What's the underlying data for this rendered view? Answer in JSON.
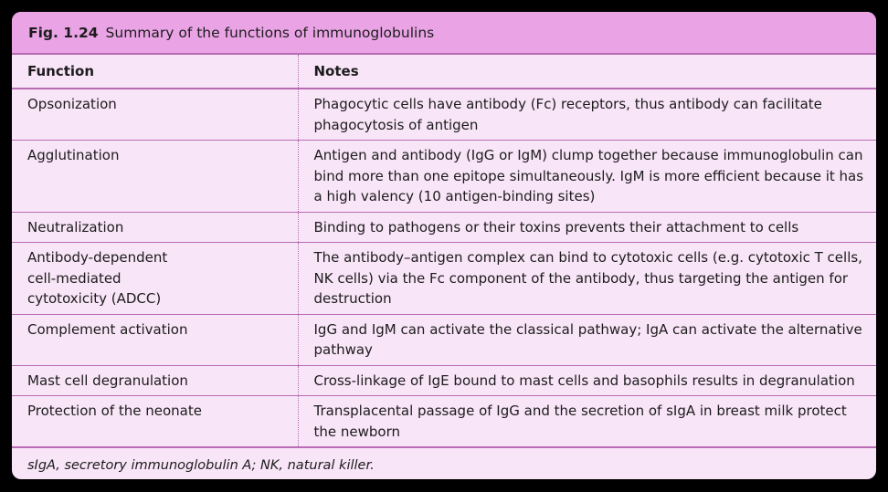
{
  "figure": {
    "label": "Fig. 1.24",
    "title": "Summary of the functions of immunoglobulins"
  },
  "table": {
    "headers": [
      "Function",
      "Notes"
    ],
    "rows": [
      {
        "function": [
          "Opsonization"
        ],
        "notes": "Phagocytic cells have antibody (Fc) receptors, thus antibody can facilitate phagocytosis of antigen"
      },
      {
        "function": [
          "Agglutination"
        ],
        "notes": "Antigen and antibody (IgG or IgM) clump together because immunoglobulin can bind more than one epitope simultaneously. IgM is more efficient because it has a high valency (10 antigen-binding sites)"
      },
      {
        "function": [
          "Neutralization"
        ],
        "notes": "Binding to pathogens or their toxins prevents their attachment to cells"
      },
      {
        "function": [
          "Antibody-dependent",
          "cell-mediated",
          "cytotoxicity (ADCC)"
        ],
        "notes": "The antibody–antigen complex can bind to cytotoxic cells (e.g. cytotoxic T cells, NK cells) via the Fc component of the antibody, thus targeting the antigen for destruction"
      },
      {
        "function": [
          "Complement activation"
        ],
        "notes": "IgG and IgM can activate the classical pathway; IgA can activate the alternative pathway"
      },
      {
        "function": [
          "Mast cell degranulation"
        ],
        "notes": "Cross-linkage of IgE bound to mast cells and basophils results in degranulation"
      },
      {
        "function": [
          "Protection of the neonate"
        ],
        "notes": "Transplacental passage of IgG and the secretion of sIgA in breast milk protect the newborn"
      }
    ]
  },
  "footnote": "sIgA, secretory immunoglobulin A; NK, natural killer.",
  "colors": {
    "title_background": "#eaa4e6",
    "panel_background": "#f9e5f8",
    "rule_color": "#b86cb4"
  }
}
